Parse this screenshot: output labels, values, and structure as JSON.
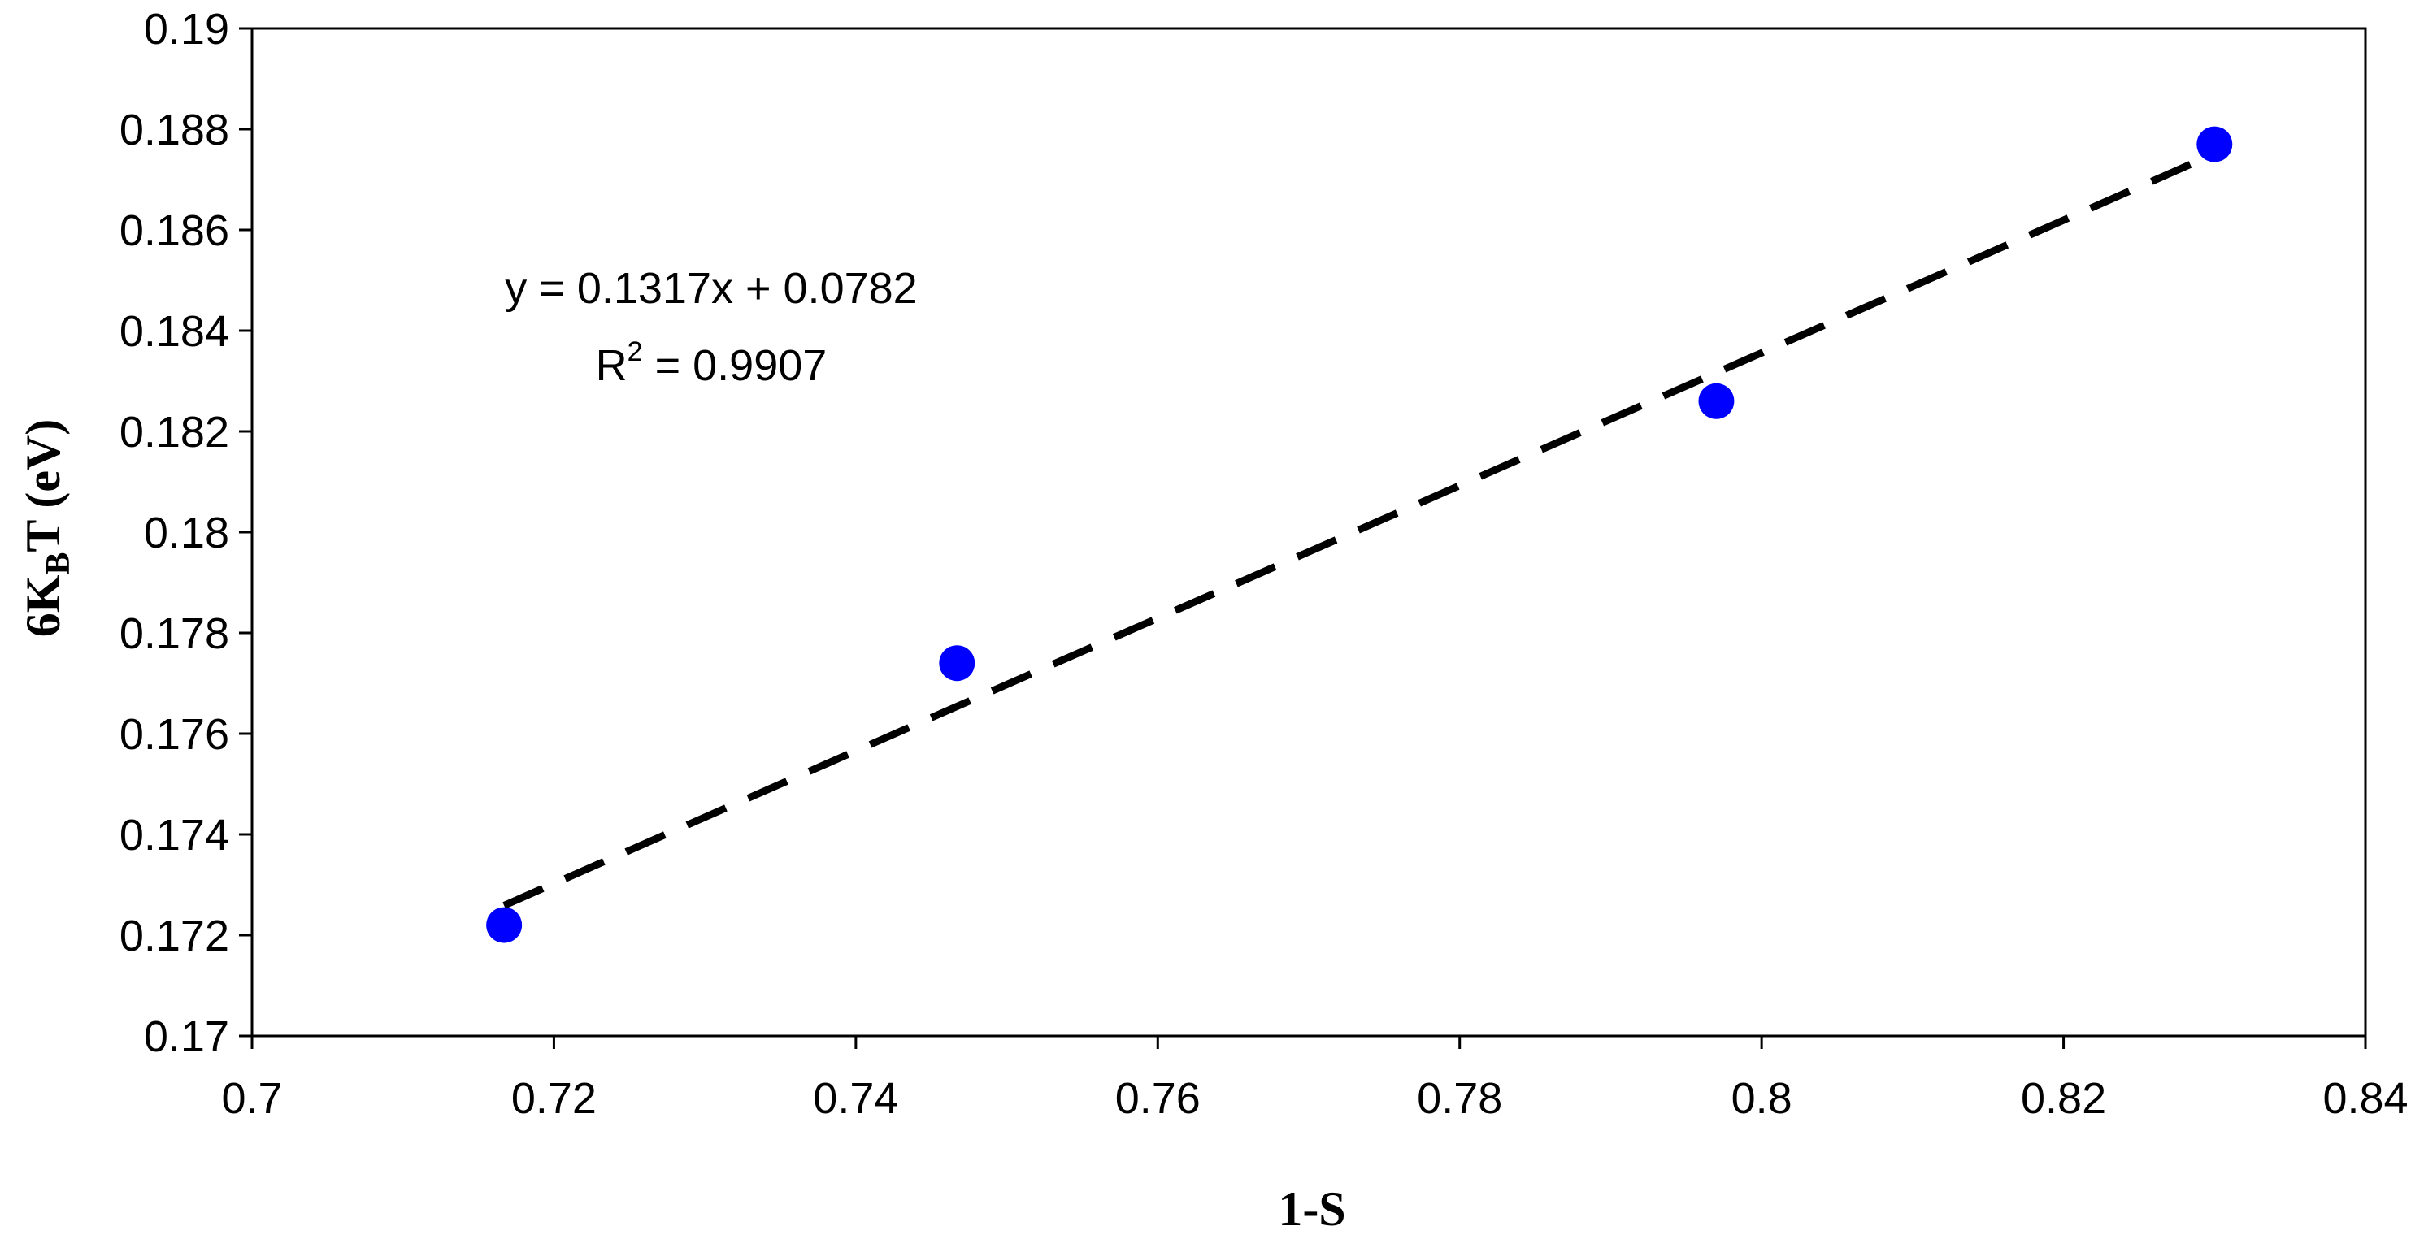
{
  "chart_data": {
    "type": "scatter",
    "title": "",
    "xlabel": "1-S",
    "ylabel": {
      "main": "6K",
      "sub": "B",
      "rest": "T (eV)"
    },
    "xlim": [
      0.7,
      0.84
    ],
    "ylim": [
      0.17,
      0.19
    ],
    "xticks": [
      "0.7",
      "0.72",
      "0.74",
      "0.76",
      "0.78",
      "0.8",
      "0.82",
      "0.84"
    ],
    "yticks": [
      "0.17",
      "0.172",
      "0.174",
      "0.176",
      "0.178",
      "0.18",
      "0.182",
      "0.184",
      "0.186",
      "0.188",
      "0.19"
    ],
    "grid": false,
    "legend": "none",
    "series": [
      {
        "marker_color": "#0000ff",
        "points": [
          {
            "x": 0.7167,
            "y": 0.1722
          },
          {
            "x": 0.7467,
            "y": 0.1774
          },
          {
            "x": 0.797,
            "y": 0.1826
          },
          {
            "x": 0.83,
            "y": 0.1877
          }
        ]
      }
    ],
    "trendline": {
      "style": "dashed",
      "color": "#000000",
      "slope": 0.1317,
      "intercept": 0.0782,
      "x_range": [
        0.7167,
        0.83
      ]
    },
    "annotation": {
      "equation": "y = 0.1317x + 0.0782",
      "r2_prefix": "R",
      "r2_sup": "2",
      "r2_rest": " = 0.9907"
    }
  }
}
